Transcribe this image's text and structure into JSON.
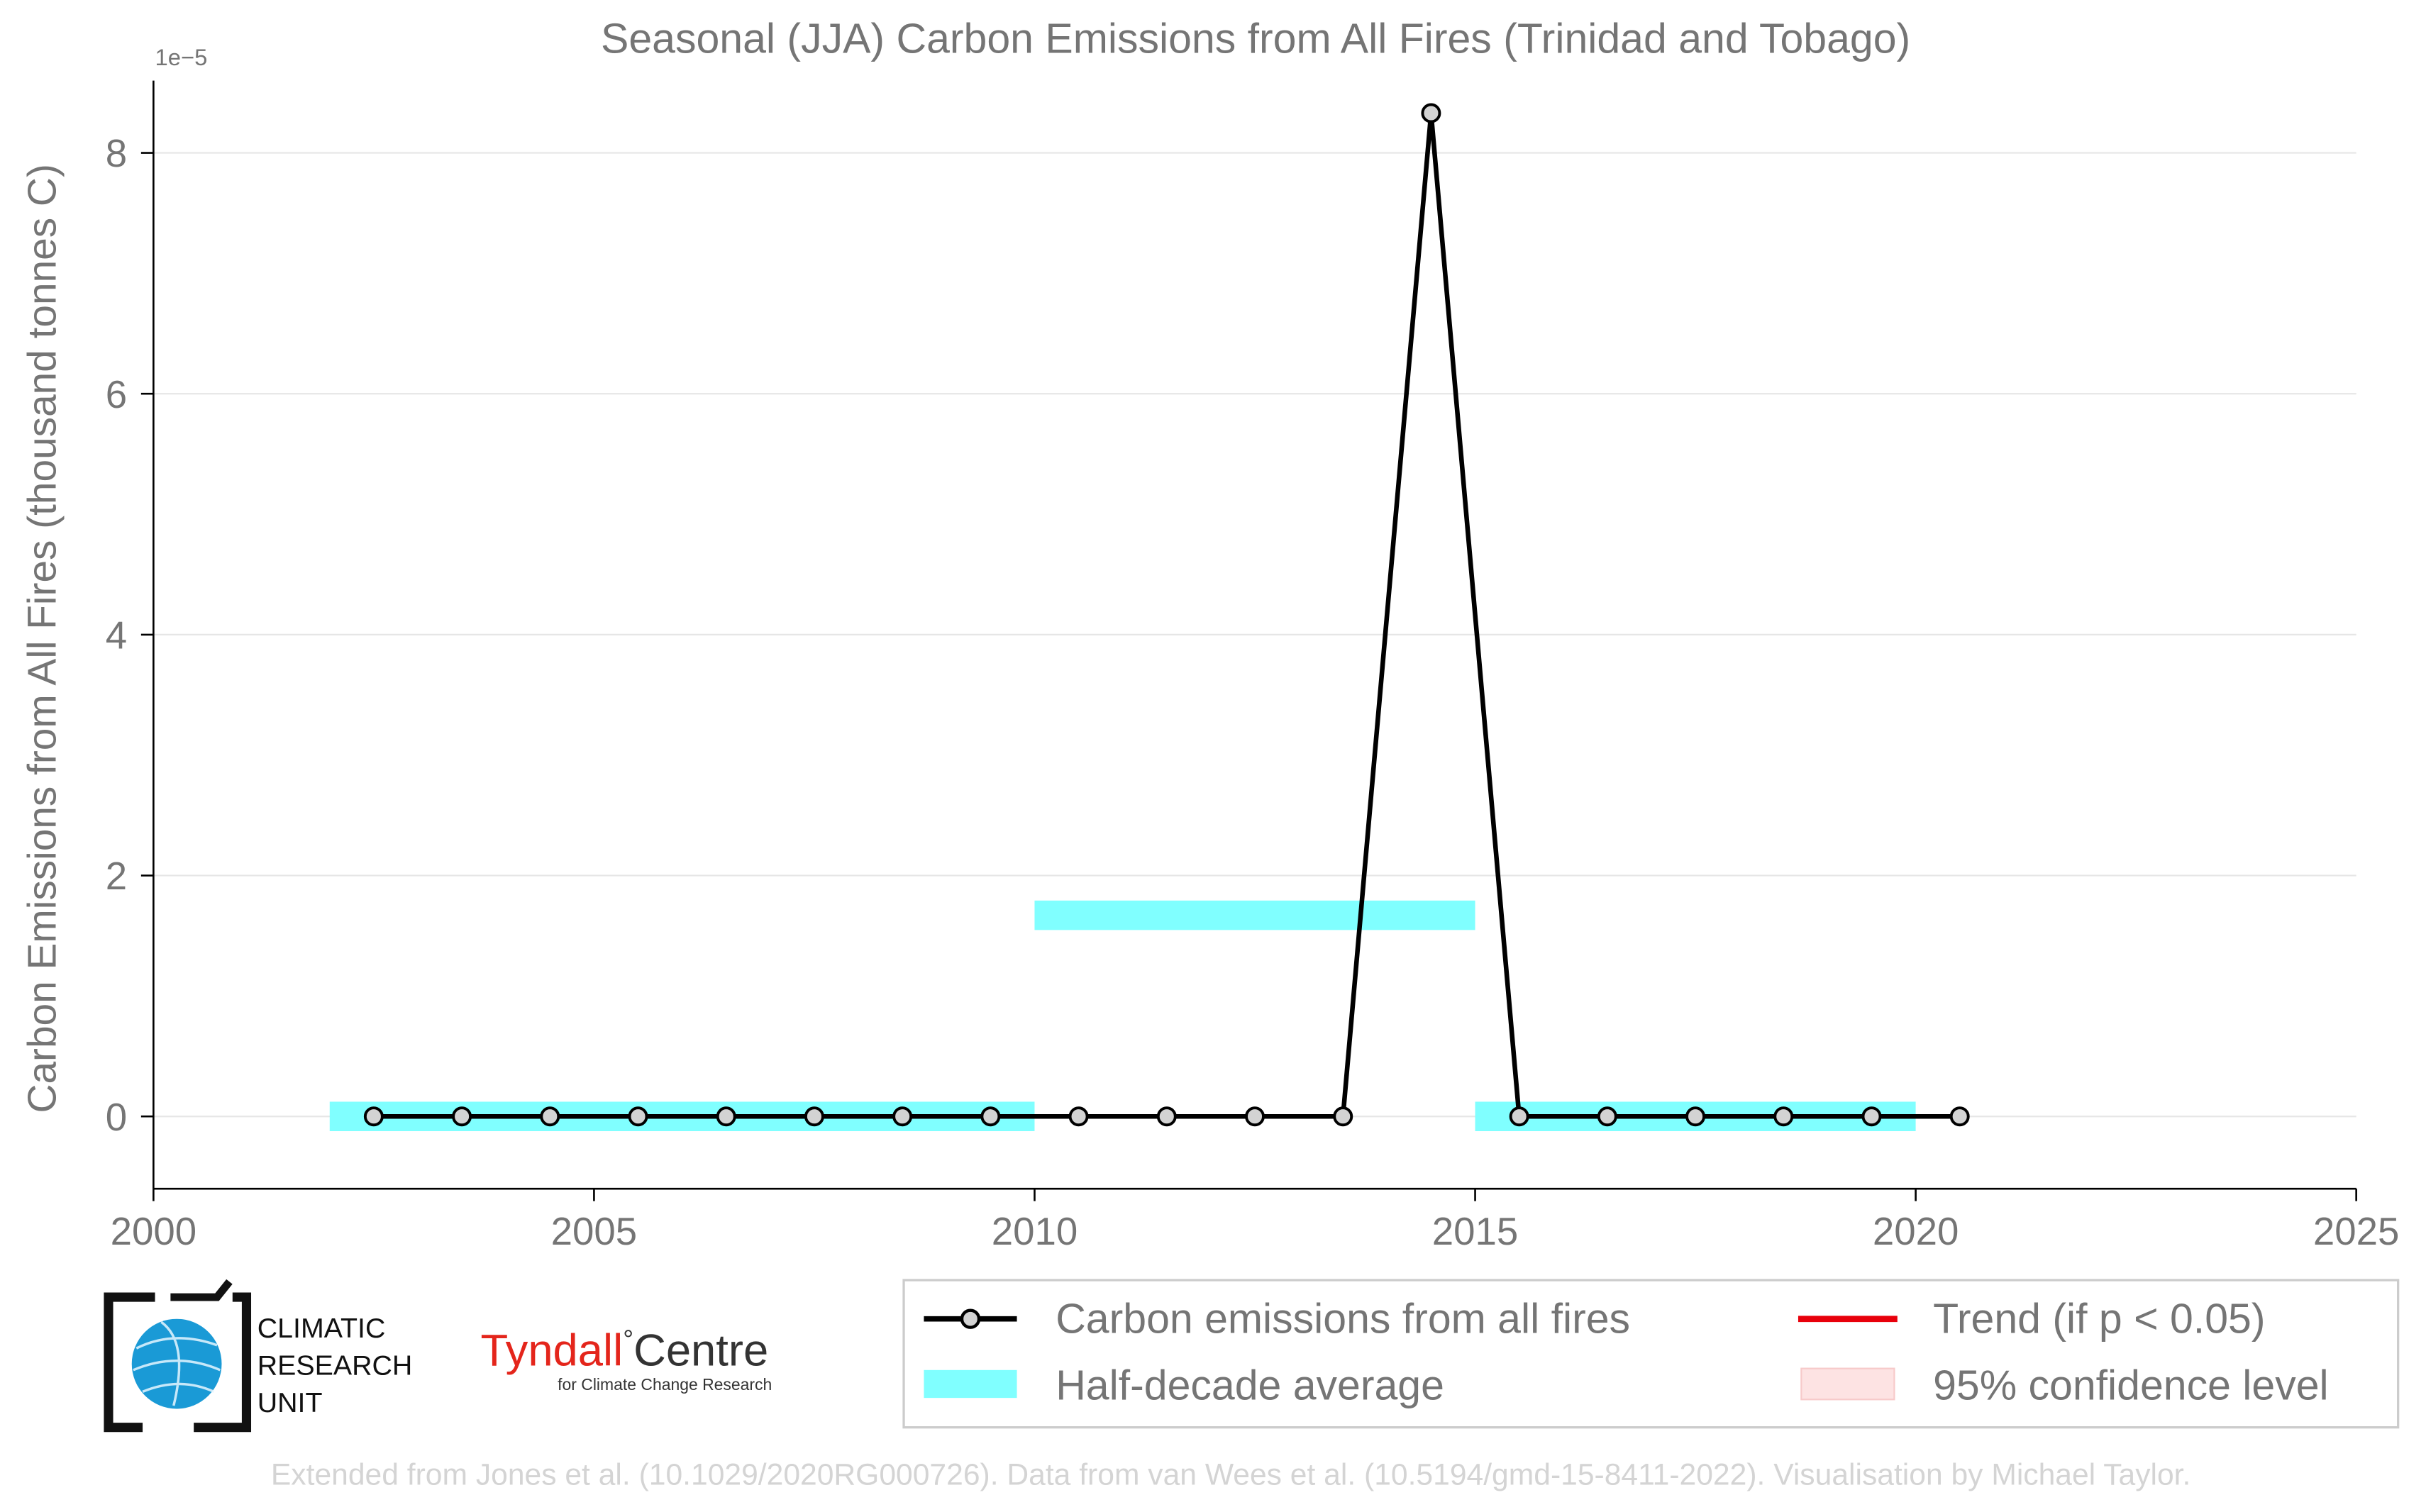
{
  "title": "Seasonal (JJA) Carbon Emissions from All Fires (Trinidad and Tobago)",
  "colors": {
    "series_line": "#000000",
    "marker_fill": "#d3d3d3",
    "half_decade": "#80ffff",
    "trend": "#e8000b",
    "confidence": "#fde3e3",
    "grid": "#e6e6e6",
    "text": "#757575",
    "credit": "#d4d4d4",
    "tyndall_red": "#e4251b",
    "globe_blue": "#1a9ad6"
  },
  "chart_data": {
    "type": "line",
    "title": "Seasonal (JJA) Carbon Emissions from All Fires (Trinidad and Tobago)",
    "xlabel": "",
    "ylabel": "Carbon Emissions from All Fires (thousand tonnes C)",
    "y_multiplier": "1e−5",
    "xlim": [
      2000,
      2025
    ],
    "ylim": [
      -0.6,
      8.6
    ],
    "x_ticks": [
      2000,
      2005,
      2010,
      2015,
      2020,
      2025
    ],
    "y_ticks": [
      0,
      2,
      4,
      6,
      8
    ],
    "grid": "horizontal",
    "legend_position": "bottom-right, below plot",
    "series": [
      {
        "name": "Carbon emissions from all fires",
        "x": [
          2002.5,
          2003.5,
          2004.5,
          2005.5,
          2006.5,
          2007.5,
          2008.5,
          2009.5,
          2010.5,
          2011.5,
          2012.5,
          2013.5,
          2014.5,
          2015.5,
          2016.5,
          2017.5,
          2018.5,
          2019.5,
          2020.5
        ],
        "values": [
          0,
          0,
          0,
          0,
          0,
          0,
          0,
          0,
          0,
          0,
          0,
          0,
          8.33,
          0,
          0,
          0,
          0,
          0,
          0
        ]
      }
    ],
    "half_decade_averages": [
      {
        "x_start": 2002,
        "x_end": 2010,
        "value": 0
      },
      {
        "x_start": 2010,
        "x_end": 2015,
        "value": 1.67
      },
      {
        "x_start": 2015,
        "x_end": 2020,
        "value": 0
      }
    ],
    "legend": [
      {
        "label": "Carbon emissions from all fires",
        "kind": "line-marker"
      },
      {
        "label": "Trend (if p < 0.05)",
        "kind": "red-line"
      },
      {
        "label": "Half-decade average",
        "kind": "cyan-band"
      },
      {
        "label": "95% confidence level",
        "kind": "pink-band"
      }
    ]
  },
  "logos": {
    "cru_line1": "CLIMATIC",
    "cru_line2": "RESEARCH",
    "cru_line3": "UNIT",
    "tyndall_name": "Tyndall",
    "tyndall_degree": "°",
    "tyndall_centre": "Centre",
    "tyndall_sub": "for Climate Change Research"
  },
  "credit": "Extended from Jones et al. (10.1029/2020RG000726). Data from van Wees et al. (10.5194/gmd-15-8411-2022). Visualisation by Michael Taylor."
}
